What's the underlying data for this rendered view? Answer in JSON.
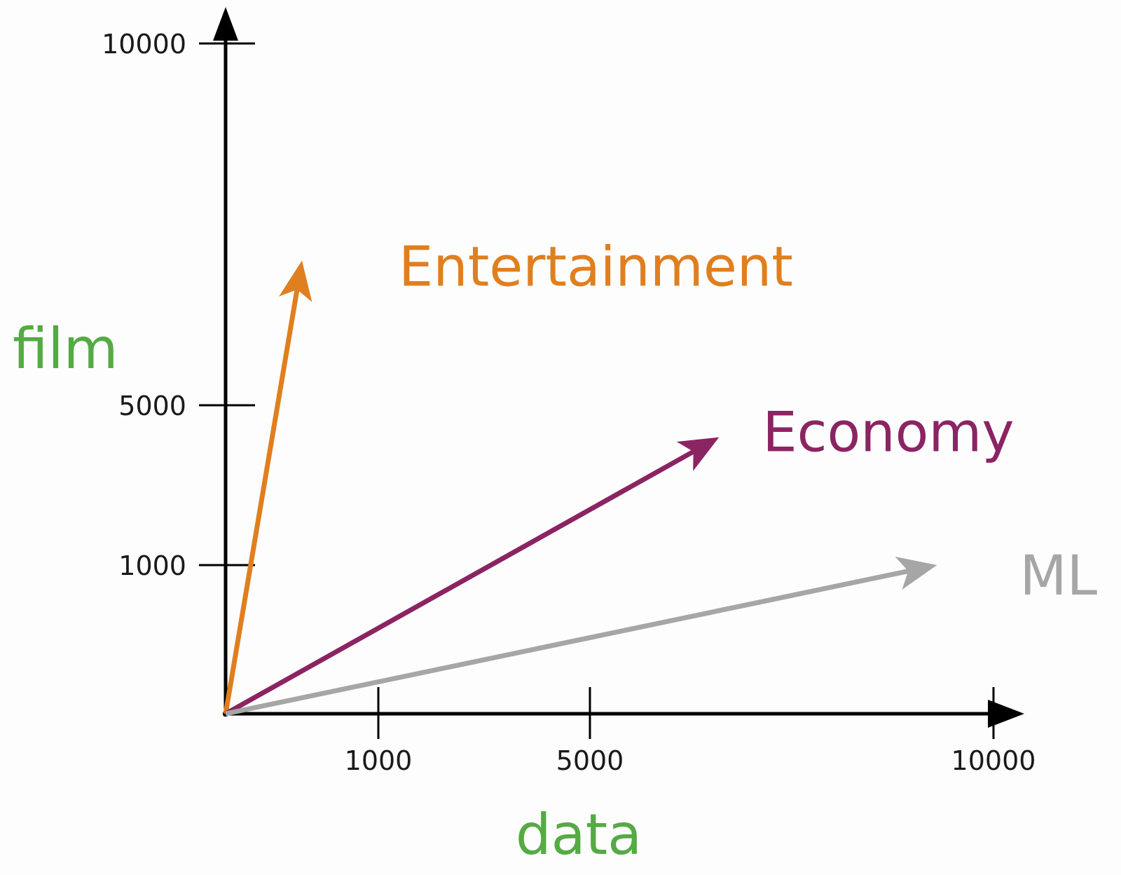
{
  "chart_data": {
    "type": "vector",
    "xlabel": "data",
    "ylabel": "film",
    "axis_label_color": "#55aa44",
    "axis_color": "#000000",
    "x_ticks": [
      {
        "value": 1000,
        "label": "1000"
      },
      {
        "value": 5000,
        "label": "5000"
      },
      {
        "value": 10000,
        "label": "10000"
      }
    ],
    "y_ticks": [
      {
        "value": 1000,
        "label": "1000"
      },
      {
        "value": 5000,
        "label": "5000"
      },
      {
        "value": 10000,
        "label": "10000"
      }
    ],
    "vectors": [
      {
        "name": "Entertainment",
        "x": 500,
        "y": 7000,
        "color": "#e07f1f"
      },
      {
        "name": "Economy",
        "x": 6600,
        "y": 4200,
        "color": "#8b2463"
      },
      {
        "name": "ML",
        "x": 9300,
        "y": 1000,
        "color": "#a6a6a6"
      }
    ]
  }
}
